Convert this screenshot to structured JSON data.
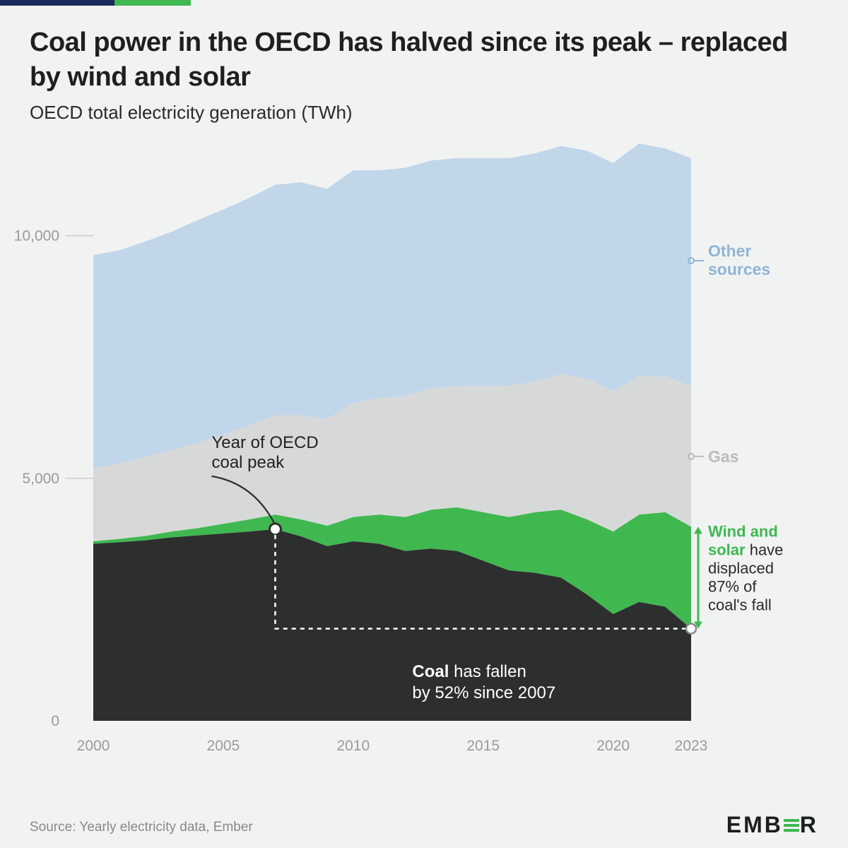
{
  "title": "Coal power in the OECD has halved since its peak – replaced by wind and solar",
  "subtitle": "OECD total electricity generation (TWh)",
  "source": "Source: Yearly electricity data, Ember",
  "logo": {
    "prefix": "EMB",
    "suffix": "R"
  },
  "chart": {
    "type": "stacked-area",
    "background_color": "#f1f3f3",
    "x": {
      "min": 2000,
      "max": 2023,
      "ticks": [
        2000,
        2005,
        2010,
        2015,
        2020,
        2023
      ],
      "labels": [
        "2000",
        "2005",
        "2010",
        "2015",
        "2020",
        "2023"
      ]
    },
    "y": {
      "min": 0,
      "max": 11800,
      "ticks": [
        0,
        5000,
        10000
      ],
      "labels": [
        "0",
        "5,000",
        "10,000"
      ]
    },
    "tick_color": "#9a9a9a",
    "tick_fontsize": 21,
    "grid_color": "#c8ccce",
    "series_order": [
      "coal",
      "wind_solar",
      "gas",
      "other"
    ],
    "colors": {
      "coal": "#2d2e2e",
      "wind_solar": "#3fb850",
      "gas": "#d7d9d9",
      "other": "#c2d6ea"
    },
    "years": [
      2000,
      2001,
      2002,
      2003,
      2004,
      2005,
      2006,
      2007,
      2008,
      2009,
      2010,
      2011,
      2012,
      2013,
      2014,
      2015,
      2016,
      2017,
      2018,
      2019,
      2020,
      2021,
      2022,
      2023
    ],
    "coal": [
      3650,
      3680,
      3720,
      3780,
      3820,
      3860,
      3900,
      3950,
      3800,
      3600,
      3700,
      3650,
      3500,
      3550,
      3500,
      3300,
      3100,
      3050,
      2950,
      2600,
      2200,
      2450,
      2350,
      1900
    ],
    "wind_solar": [
      50,
      70,
      90,
      120,
      150,
      200,
      250,
      300,
      350,
      420,
      500,
      600,
      700,
      800,
      900,
      1000,
      1100,
      1250,
      1400,
      1550,
      1700,
      1800,
      1950,
      2100
    ],
    "gas": [
      1500,
      1550,
      1620,
      1680,
      1750,
      1830,
      1930,
      2050,
      2150,
      2200,
      2350,
      2400,
      2500,
      2500,
      2500,
      2600,
      2700,
      2700,
      2800,
      2900,
      2900,
      2850,
      2800,
      2900
    ],
    "other": [
      4400,
      4400,
      4450,
      4500,
      4600,
      4650,
      4700,
      4750,
      4800,
      4750,
      4800,
      4700,
      4700,
      4700,
      4700,
      4700,
      4700,
      4700,
      4700,
      4700,
      4700,
      4800,
      4700,
      4700
    ],
    "labels": {
      "other": {
        "text": "Other sources",
        "color": "#8fb4d6",
        "weight": 700
      },
      "gas": {
        "text": "Gas",
        "color": "#b9bcbc",
        "weight": 700
      },
      "wind_solar": {
        "line1": "Wind and",
        "line2": "solar",
        "rest": " have displaced 87% of coal's fall",
        "color_strong": "#3fb850",
        "color_rest": "#2a2a2a"
      }
    },
    "peak_annotation": {
      "year": 2007,
      "text": "Year of OECD coal peak",
      "dot_fill": "#ffffff",
      "dot_stroke": "#2d2e2e",
      "curve_stroke": "#2d2e2e",
      "dash": "6,6",
      "dash_color": "#ffffff"
    },
    "coal_annotation": {
      "line1_strong": "Coal",
      "line1_rest": " has fallen",
      "line2": "by 52% since 2007",
      "color": "#ffffff"
    }
  }
}
